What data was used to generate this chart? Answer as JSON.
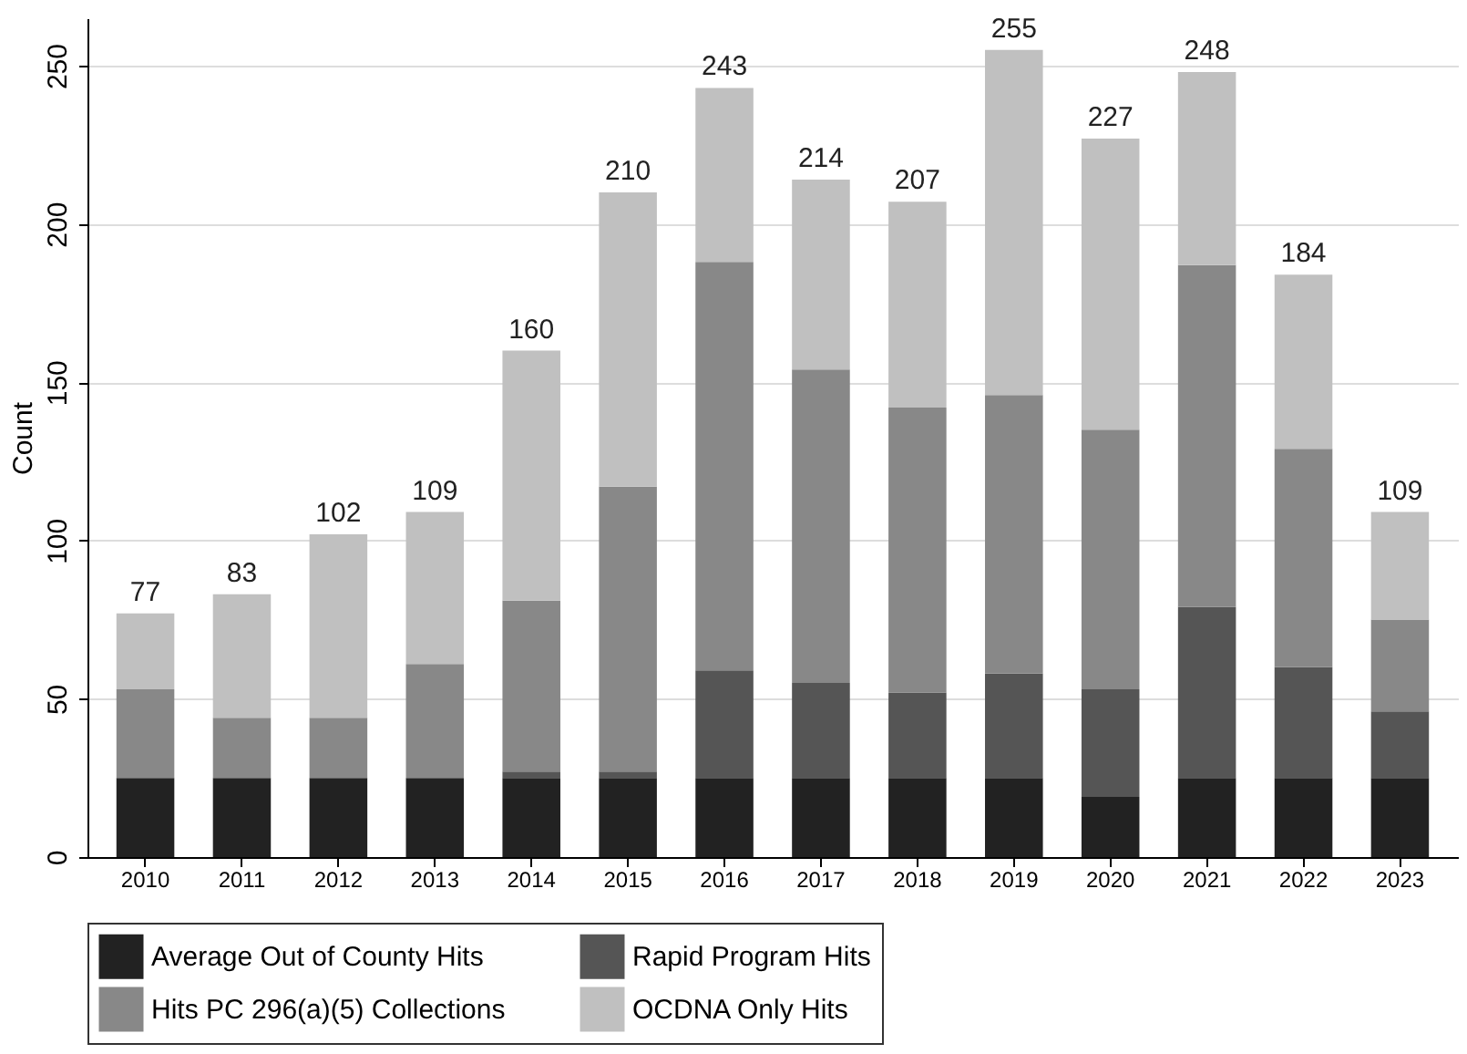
{
  "chart_data": {
    "type": "bar",
    "stacked": true,
    "ylabel": "Count",
    "categories": [
      "2010",
      "2011",
      "2012",
      "2013",
      "2014",
      "2015",
      "2016",
      "2017",
      "2018",
      "2019",
      "2020",
      "2021",
      "2022",
      "2023"
    ],
    "series": [
      {
        "name": "Average Out of County Hits",
        "color": "#222222",
        "values": [
          25,
          25,
          25,
          25,
          25,
          25,
          25,
          25,
          25,
          25,
          19,
          25,
          25,
          25
        ]
      },
      {
        "name": "Rapid Program Hits",
        "color": "#555555",
        "values": [
          0,
          0,
          0,
          0,
          2,
          2,
          34,
          30,
          27,
          33,
          34,
          54,
          35,
          21
        ]
      },
      {
        "name": "Hits PC 296(a)(5) Collections",
        "color": "#888888",
        "values": [
          28,
          19,
          19,
          36,
          54,
          90,
          129,
          99,
          90,
          88,
          82,
          108,
          69,
          29
        ]
      },
      {
        "name": "OCDNA Only Hits",
        "color": "#c0c0c0",
        "values": [
          24,
          39,
          58,
          48,
          79,
          93,
          55,
          60,
          65,
          109,
          92,
          61,
          55,
          34
        ]
      }
    ],
    "totals": [
      "77",
      "83",
      "102",
      "109",
      "160",
      "210",
      "243",
      "214",
      "207",
      "255",
      "227",
      "248",
      "184",
      "109"
    ],
    "ylim": [
      0,
      265
    ],
    "yticks": [
      0,
      50,
      100,
      150,
      200,
      250
    ],
    "grid": "y",
    "legend": "bottom"
  }
}
